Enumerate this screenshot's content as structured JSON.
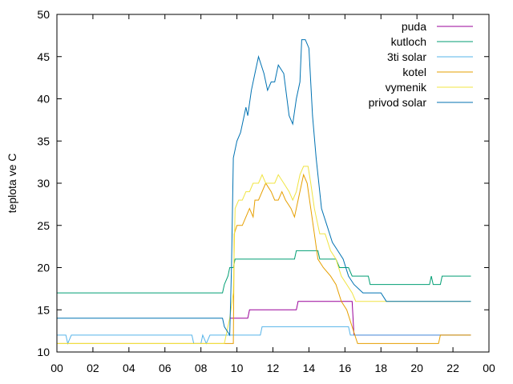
{
  "chart_data": {
    "type": "line",
    "ylabel": "teplota ve C",
    "xlim": [
      0,
      24
    ],
    "ylim": [
      10,
      50
    ],
    "x_tick_labels": [
      "00",
      "02",
      "04",
      "06",
      "08",
      "10",
      "12",
      "14",
      "16",
      "18",
      "20",
      "22",
      "00"
    ],
    "y_tick_labels": [
      "10",
      "15",
      "20",
      "25",
      "30",
      "35",
      "40",
      "45",
      "50"
    ],
    "grid": false,
    "legend_position": "top-right",
    "series": [
      {
        "name": "puda",
        "color": "#990099",
        "points": [
          [
            9.6,
            14
          ],
          [
            10.6,
            14
          ],
          [
            10.7,
            15
          ],
          [
            13.3,
            15
          ],
          [
            13.4,
            16
          ],
          [
            16.4,
            16
          ],
          [
            16.5,
            12
          ],
          [
            23,
            12
          ]
        ]
      },
      {
        "name": "kutloch",
        "color": "#009e73",
        "points": [
          [
            0,
            17
          ],
          [
            9.2,
            17
          ],
          [
            9.3,
            18
          ],
          [
            9.5,
            19
          ],
          [
            9.6,
            20
          ],
          [
            9.8,
            20
          ],
          [
            9.9,
            21
          ],
          [
            13.2,
            21
          ],
          [
            13.3,
            22
          ],
          [
            14.5,
            22
          ],
          [
            14.6,
            21
          ],
          [
            15.5,
            21
          ],
          [
            15.7,
            20
          ],
          [
            16.2,
            20
          ],
          [
            16.4,
            19
          ],
          [
            17.3,
            19
          ],
          [
            17.4,
            18
          ],
          [
            20.7,
            18
          ],
          [
            20.8,
            19
          ],
          [
            20.9,
            18
          ],
          [
            21.3,
            18
          ],
          [
            21.4,
            19
          ],
          [
            23,
            19
          ]
        ]
      },
      {
        "name": "3ti solar",
        "color": "#56b4e9",
        "points": [
          [
            0,
            12
          ],
          [
            0.5,
            12
          ],
          [
            0.6,
            11
          ],
          [
            0.8,
            12
          ],
          [
            7.5,
            12
          ],
          [
            7.6,
            11
          ],
          [
            8.0,
            11
          ],
          [
            8.1,
            12
          ],
          [
            8.3,
            11
          ],
          [
            8.5,
            12
          ],
          [
            11.3,
            12
          ],
          [
            11.4,
            13
          ],
          [
            16.2,
            13
          ],
          [
            16.3,
            12
          ],
          [
            23,
            12
          ]
        ]
      },
      {
        "name": "kotel",
        "color": "#e69f00",
        "points": [
          [
            0,
            11
          ],
          [
            9.8,
            11
          ],
          [
            9.85,
            24
          ],
          [
            10.0,
            25
          ],
          [
            10.3,
            25
          ],
          [
            10.5,
            26
          ],
          [
            10.7,
            27
          ],
          [
            10.9,
            26
          ],
          [
            11.0,
            28
          ],
          [
            11.2,
            28
          ],
          [
            11.4,
            29
          ],
          [
            11.6,
            30
          ],
          [
            11.9,
            29
          ],
          [
            12.1,
            28
          ],
          [
            12.3,
            28
          ],
          [
            12.5,
            29
          ],
          [
            12.7,
            28
          ],
          [
            13.0,
            27
          ],
          [
            13.2,
            26
          ],
          [
            13.4,
            28
          ],
          [
            13.6,
            30
          ],
          [
            13.7,
            31
          ],
          [
            13.9,
            30
          ],
          [
            14.1,
            27
          ],
          [
            14.3,
            24
          ],
          [
            14.5,
            21
          ],
          [
            14.8,
            20
          ],
          [
            15.2,
            19
          ],
          [
            15.5,
            18
          ],
          [
            15.8,
            16
          ],
          [
            16.1,
            15
          ],
          [
            16.4,
            13
          ],
          [
            16.7,
            11
          ],
          [
            21.2,
            11
          ],
          [
            21.3,
            12
          ],
          [
            23,
            12
          ]
        ]
      },
      {
        "name": "vymenik",
        "color": "#f0e442",
        "points": [
          [
            0,
            11
          ],
          [
            9.3,
            11
          ],
          [
            9.6,
            14
          ],
          [
            9.8,
            17
          ],
          [
            9.9,
            27
          ],
          [
            10.1,
            28
          ],
          [
            10.3,
            28
          ],
          [
            10.5,
            29
          ],
          [
            10.7,
            29
          ],
          [
            10.9,
            30
          ],
          [
            11.2,
            30
          ],
          [
            11.4,
            31
          ],
          [
            11.6,
            30
          ],
          [
            11.9,
            30
          ],
          [
            12.1,
            30
          ],
          [
            12.3,
            31
          ],
          [
            12.6,
            30
          ],
          [
            12.9,
            29
          ],
          [
            13.1,
            28
          ],
          [
            13.3,
            29
          ],
          [
            13.5,
            31
          ],
          [
            13.7,
            32
          ],
          [
            13.95,
            32
          ],
          [
            14.1,
            30
          ],
          [
            14.3,
            27
          ],
          [
            14.6,
            24
          ],
          [
            14.9,
            24
          ],
          [
            15.2,
            22
          ],
          [
            15.5,
            21
          ],
          [
            15.8,
            19
          ],
          [
            16.1,
            18
          ],
          [
            16.4,
            17
          ],
          [
            16.6,
            16
          ],
          [
            23,
            16
          ]
        ]
      },
      {
        "name": "privod solar",
        "color": "#0072b2",
        "points": [
          [
            0,
            14
          ],
          [
            9.2,
            14
          ],
          [
            9.3,
            13
          ],
          [
            9.6,
            12
          ],
          [
            9.7,
            20
          ],
          [
            9.8,
            33
          ],
          [
            10.0,
            35
          ],
          [
            10.2,
            36
          ],
          [
            10.4,
            38
          ],
          [
            10.5,
            39
          ],
          [
            10.6,
            38
          ],
          [
            10.8,
            41
          ],
          [
            11.0,
            43
          ],
          [
            11.2,
            45
          ],
          [
            11.5,
            43
          ],
          [
            11.7,
            41
          ],
          [
            11.9,
            42
          ],
          [
            12.1,
            42
          ],
          [
            12.3,
            44
          ],
          [
            12.6,
            43
          ],
          [
            12.9,
            38
          ],
          [
            13.1,
            37
          ],
          [
            13.3,
            40
          ],
          [
            13.5,
            42
          ],
          [
            13.6,
            47
          ],
          [
            13.8,
            47
          ],
          [
            14.0,
            46
          ],
          [
            14.2,
            38
          ],
          [
            14.4,
            33
          ],
          [
            14.7,
            27
          ],
          [
            15.0,
            25
          ],
          [
            15.3,
            23
          ],
          [
            15.6,
            22
          ],
          [
            15.9,
            21
          ],
          [
            16.2,
            19
          ],
          [
            16.5,
            18
          ],
          [
            17.0,
            17
          ],
          [
            17.5,
            17
          ],
          [
            18.0,
            17
          ],
          [
            18.3,
            16
          ],
          [
            23,
            16
          ]
        ]
      }
    ]
  }
}
